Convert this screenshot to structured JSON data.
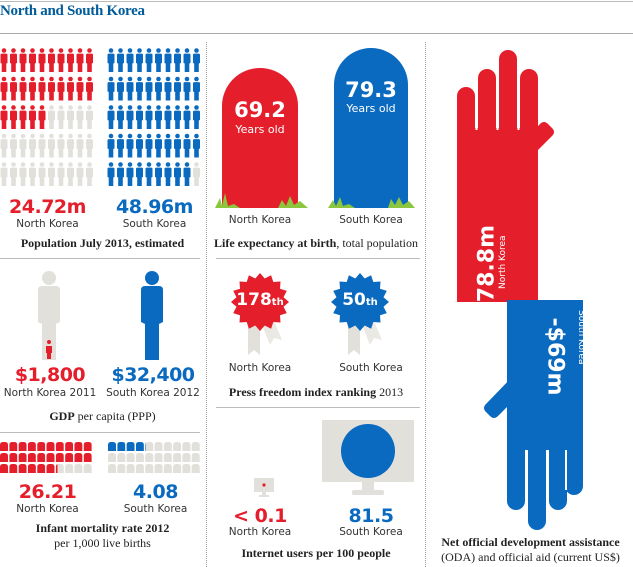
{
  "title": "North and South Korea",
  "colors": {
    "north": "#e41e2b",
    "south": "#0a6abf",
    "empty": "#e2e0da",
    "grass": "#8cc63f"
  },
  "population": {
    "north": {
      "value": "24.72m",
      "label": "North Korea",
      "filled_icons": 25,
      "total_icons": 50
    },
    "south": {
      "value": "48.96m",
      "label": "South Korea",
      "filled_icons": 49,
      "total_icons": 50
    },
    "caption_bold": "Population July 2013, estimated",
    "caption_rest": ""
  },
  "gdp": {
    "north": {
      "value": "$1,800",
      "label": "North Korea 2011"
    },
    "south": {
      "value": "$32,400",
      "label": "South Korea 2012"
    },
    "caption_bold": "GDP",
    "caption_rest": " per capita (PPP)"
  },
  "infant_mortality": {
    "north": {
      "value": "26.21",
      "label": "North Korea",
      "filled_icons": 26.21,
      "total_icons": 30
    },
    "south": {
      "value": "4.08",
      "label": "South Korea",
      "filled_icons": 4.08,
      "total_icons": 30
    },
    "caption_bold": "Infant mortality rate 2012",
    "caption_rest": "per 1,000 live births"
  },
  "life_expectancy": {
    "north": {
      "value": "69.2",
      "unit": "Years old",
      "label": "North Korea"
    },
    "south": {
      "value": "79.3",
      "unit": "Years old",
      "label": "South Korea"
    },
    "caption_bold": "Life expectancy at birth",
    "caption_rest": ", total population"
  },
  "press_freedom": {
    "north": {
      "value": "178",
      "suffix": "th",
      "label": "North Korea"
    },
    "south": {
      "value": "50",
      "suffix": "th",
      "label": "South Korea"
    },
    "caption_bold": "Press freedom index ranking",
    "caption_rest": " 2013"
  },
  "internet": {
    "north": {
      "value": "< 0.1",
      "label": "North Korea"
    },
    "south": {
      "value": "81.5",
      "label": "South Korea"
    },
    "caption_bold": "Internet users per 100 people",
    "caption_rest": ""
  },
  "oda": {
    "north": {
      "value": "$78.8m",
      "label": "North Korea"
    },
    "south": {
      "value": "-$69m",
      "label": "South Korea"
    },
    "caption_bold": "Net official development assistance",
    "caption_rest": "(ODA) and official aid (current US$)"
  }
}
